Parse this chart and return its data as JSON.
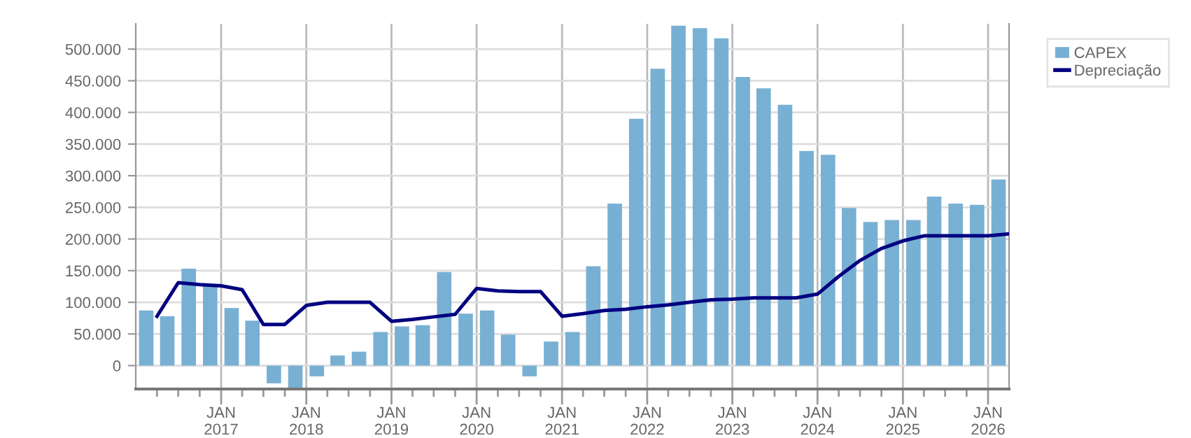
{
  "chart_data": {
    "type": "bar",
    "series": [
      {
        "name": "CAPEX",
        "color": "#78b0d3",
        "x": [
          "2016-02-15",
          "2016-05-15",
          "2016-08-15",
          "2016-11-15",
          "2017-02-15",
          "2017-05-15",
          "2017-08-15",
          "2017-11-15",
          "2018-02-15",
          "2018-05-15",
          "2018-08-15",
          "2018-11-15",
          "2019-02-15",
          "2019-05-15",
          "2019-08-15",
          "2019-11-15",
          "2020-02-15",
          "2020-05-15",
          "2020-08-15",
          "2020-11-15",
          "2021-02-15",
          "2021-05-15",
          "2021-08-15",
          "2021-11-15",
          "2022-02-15",
          "2022-05-15",
          "2022-08-15",
          "2022-11-15",
          "2023-02-15",
          "2023-05-15",
          "2023-08-15",
          "2023-11-15",
          "2024-02-15",
          "2024-05-15",
          "2024-08-15",
          "2024-11-15",
          "2025-02-15",
          "2025-05-15",
          "2025-08-15",
          "2025-11-15",
          "2026-02-15"
        ],
        "values": [
          87000,
          78000,
          153000,
          127000,
          91000,
          71000,
          -28000,
          -37000,
          -17000,
          16000,
          22000,
          53000,
          62000,
          64000,
          148000,
          82000,
          87000,
          49000,
          -17000,
          38000,
          53000,
          157000,
          256000,
          390000,
          469000,
          537000,
          533000,
          517000,
          456000,
          438000,
          412000,
          339000,
          333000,
          249000,
          227000,
          230000,
          230000,
          267000,
          256000,
          254000,
          294000
        ]
      },
      {
        "name": "Depreciação",
        "type": "line",
        "color": "#000080",
        "marker": "none",
        "line_style": "solid",
        "x": [
          "2016-04-01",
          "2016-07-01",
          "2016-10-01",
          "2017-01-01",
          "2017-04-01",
          "2017-07-01",
          "2017-10-01",
          "2018-01-01",
          "2018-04-01",
          "2018-07-01",
          "2018-10-01",
          "2019-01-01",
          "2019-04-01",
          "2019-07-01",
          "2019-10-01",
          "2020-01-01",
          "2020-04-01",
          "2020-07-01",
          "2020-10-01",
          "2021-01-01",
          "2021-04-01",
          "2021-07-01",
          "2021-10-01",
          "2022-01-01",
          "2022-04-01",
          "2022-07-01",
          "2022-10-01",
          "2023-01-01",
          "2023-04-01",
          "2023-07-01",
          "2023-10-01",
          "2024-01-01",
          "2024-04-01",
          "2024-07-01",
          "2024-10-01",
          "2025-01-01",
          "2025-04-01",
          "2025-07-01",
          "2025-10-01",
          "2026-01-01",
          "2026-04-01"
        ],
        "values": [
          78000,
          131000,
          128000,
          126000,
          120000,
          65000,
          65000,
          95000,
          100000,
          100000,
          100000,
          70000,
          73000,
          77000,
          81000,
          122000,
          118000,
          117000,
          117000,
          78000,
          82000,
          87000,
          89000,
          93000,
          96000,
          100000,
          104000,
          105000,
          107000,
          107000,
          107000,
          113000,
          141000,
          166000,
          185000,
          197000,
          205000,
          205000,
          205000,
          205000,
          208000
        ]
      }
    ],
    "xlim": [
      "2016-01-01",
      "2026-04-01"
    ],
    "xticks": [
      {
        "value": "2016-04-01",
        "label": null
      },
      {
        "value": "2016-07-01",
        "label": null
      },
      {
        "value": "2016-10-01",
        "label": null
      },
      {
        "value": "2017-01-01",
        "label": "JAN\n2017"
      },
      {
        "value": "2017-04-01",
        "label": null
      },
      {
        "value": "2017-07-01",
        "label": null
      },
      {
        "value": "2017-10-01",
        "label": null
      },
      {
        "value": "2018-01-01",
        "label": "JAN\n2018"
      },
      {
        "value": "2018-04-01",
        "label": null
      },
      {
        "value": "2018-07-01",
        "label": null
      },
      {
        "value": "2018-10-01",
        "label": null
      },
      {
        "value": "2019-01-01",
        "label": "JAN\n2019"
      },
      {
        "value": "2019-04-01",
        "label": null
      },
      {
        "value": "2019-07-01",
        "label": null
      },
      {
        "value": "2019-10-01",
        "label": null
      },
      {
        "value": "2020-01-01",
        "label": "JAN\n2020"
      },
      {
        "value": "2020-04-01",
        "label": null
      },
      {
        "value": "2020-07-01",
        "label": null
      },
      {
        "value": "2020-10-01",
        "label": null
      },
      {
        "value": "2021-01-01",
        "label": "JAN\n2021"
      },
      {
        "value": "2021-04-01",
        "label": null
      },
      {
        "value": "2021-07-01",
        "label": null
      },
      {
        "value": "2021-10-01",
        "label": null
      },
      {
        "value": "2022-01-01",
        "label": "JAN\n2022"
      },
      {
        "value": "2022-04-01",
        "label": null
      },
      {
        "value": "2022-07-01",
        "label": null
      },
      {
        "value": "2022-10-01",
        "label": null
      },
      {
        "value": "2023-01-01",
        "label": "JAN\n2023"
      },
      {
        "value": "2023-04-01",
        "label": null
      },
      {
        "value": "2023-07-01",
        "label": null
      },
      {
        "value": "2023-10-01",
        "label": null
      },
      {
        "value": "2024-01-01",
        "label": "JAN\n2024"
      },
      {
        "value": "2024-04-01",
        "label": null
      },
      {
        "value": "2024-07-01",
        "label": null
      },
      {
        "value": "2024-10-01",
        "label": null
      },
      {
        "value": "2025-01-01",
        "label": "JAN\n2025"
      },
      {
        "value": "2025-04-01",
        "label": null
      },
      {
        "value": "2025-07-01",
        "label": null
      },
      {
        "value": "2025-10-01",
        "label": null
      },
      {
        "value": "2026-01-01",
        "label": "JAN\n2026"
      }
    ],
    "ylim": [
      -37000,
      540000
    ],
    "yticks": [
      0,
      {
        "value": 50000,
        "label": "50.000"
      },
      {
        "value": 100000,
        "label": "100.000"
      },
      {
        "value": 150000,
        "label": "150.000"
      },
      {
        "value": 200000,
        "label": "200.000"
      },
      {
        "value": 250000,
        "label": "250.000"
      },
      {
        "value": 300000,
        "label": "300.000"
      },
      {
        "value": 350000,
        "label": "350.000"
      },
      {
        "value": 400000,
        "label": "400.000"
      },
      {
        "value": 450000,
        "label": "450.000"
      },
      {
        "value": 500000,
        "label": "500.000"
      }
    ],
    "grid": true,
    "legend": "top right"
  }
}
